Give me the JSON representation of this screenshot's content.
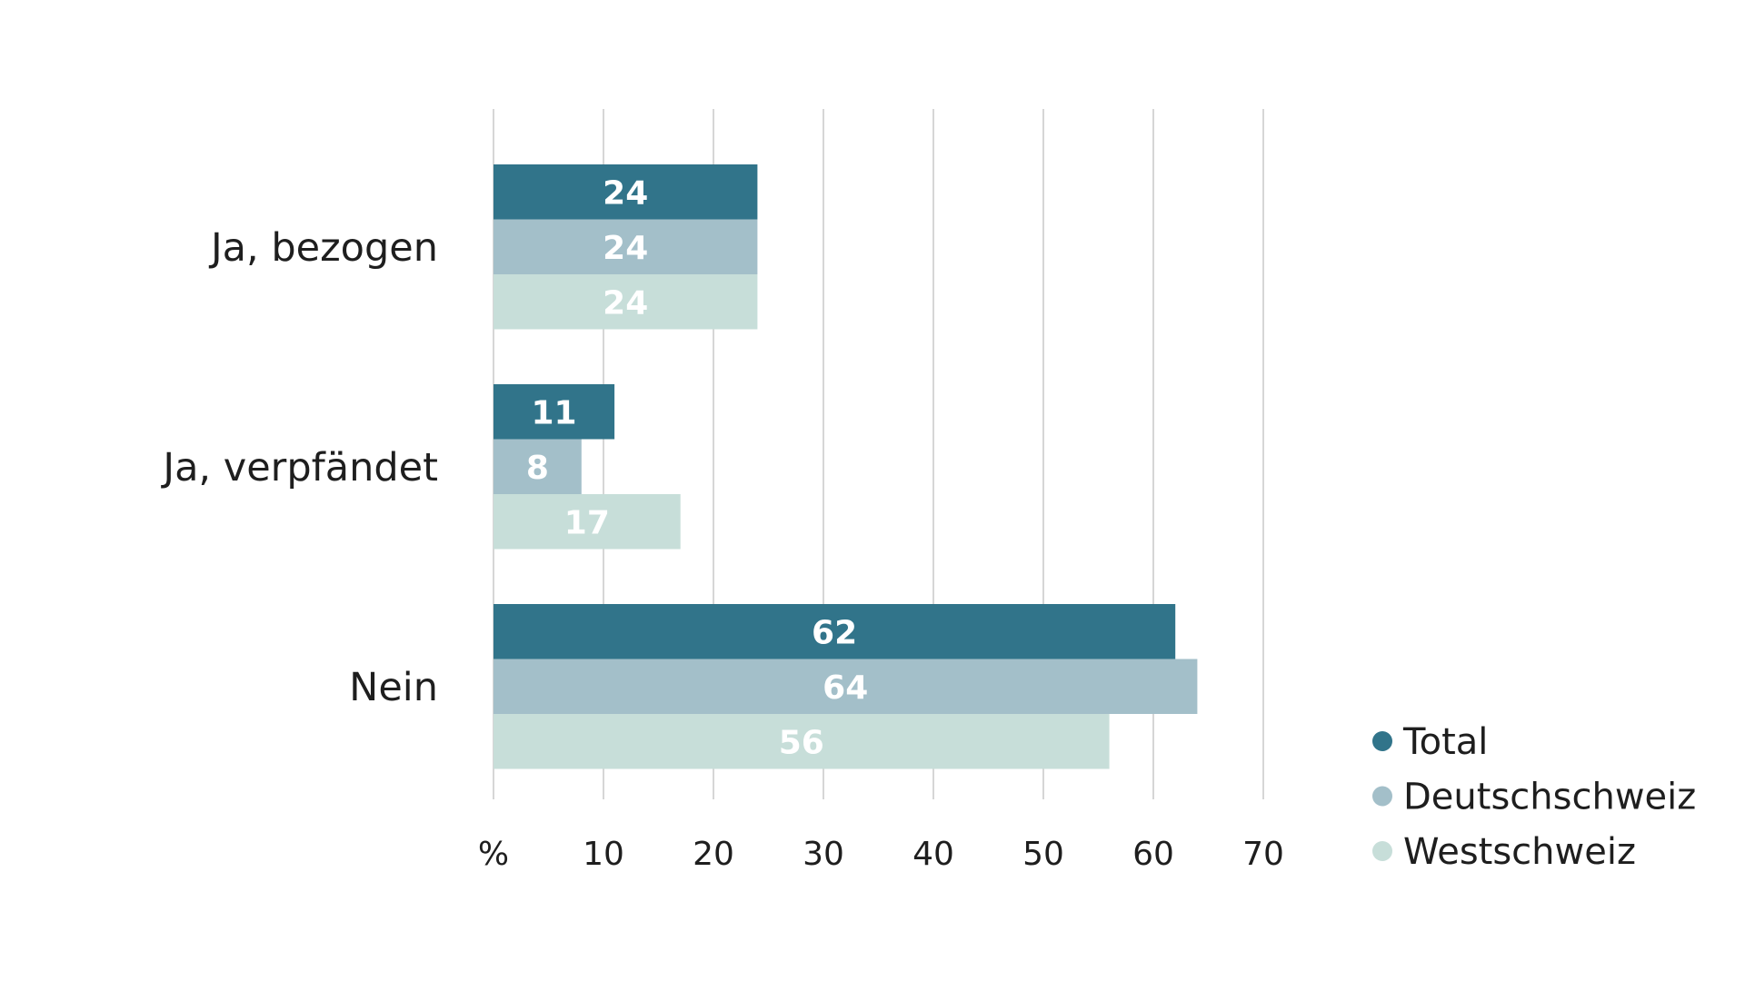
{
  "chart_data": {
    "type": "bar",
    "orientation": "horizontal",
    "categories": [
      "Ja, bezogen",
      "Ja, verpfändet",
      "Nein"
    ],
    "series": [
      {
        "name": "Total",
        "values": [
          24,
          11,
          62
        ],
        "color": "#31748a"
      },
      {
        "name": "Deutschschweiz",
        "values": [
          24,
          8,
          64
        ],
        "color": "#a3bfc9"
      },
      {
        "name": "Westschweiz",
        "values": [
          24,
          17,
          56
        ],
        "color": "#c7ded9"
      }
    ],
    "x_ticks": [
      "%",
      "10",
      "20",
      "30",
      "40",
      "50",
      "60",
      "70"
    ],
    "xlim": [
      0,
      70
    ],
    "grid": true,
    "legend_position": "bottom-right",
    "value_label_color": "#ffffff"
  }
}
